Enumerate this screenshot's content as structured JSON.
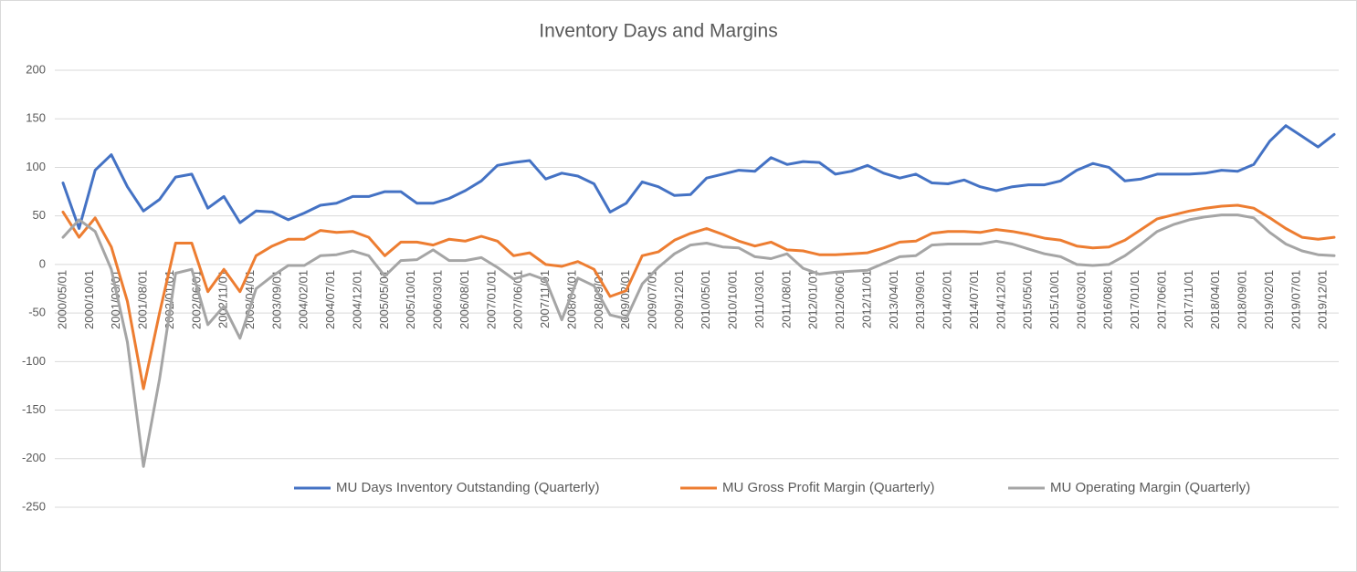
{
  "chart_data": {
    "type": "line",
    "title": "Inventory Days and Margins",
    "x": [
      "2000/05/01",
      "2000/08/01",
      "2000/11/01",
      "2001/02/01",
      "2001/05/01",
      "2001/08/01",
      "2001/11/01",
      "2002/02/01",
      "2002/05/01",
      "2002/08/01",
      "2002/11/01",
      "2003/02/01",
      "2003/05/01",
      "2003/08/01",
      "2003/11/01",
      "2004/02/01",
      "2004/05/01",
      "2004/08/01",
      "2004/11/01",
      "2005/02/01",
      "2005/05/01",
      "2005/08/01",
      "2005/11/01",
      "2006/02/01",
      "2006/05/01",
      "2006/08/01",
      "2006/11/01",
      "2007/02/01",
      "2007/05/01",
      "2007/08/01",
      "2007/11/01",
      "2008/02/01",
      "2008/05/01",
      "2008/08/01",
      "2008/11/01",
      "2009/02/01",
      "2009/05/01",
      "2009/08/01",
      "2009/11/01",
      "2010/02/01",
      "2010/05/01",
      "2010/08/01",
      "2010/11/01",
      "2011/02/01",
      "2011/05/01",
      "2011/08/01",
      "2011/11/01",
      "2012/02/01",
      "2012/05/01",
      "2012/08/01",
      "2012/11/01",
      "2013/02/01",
      "2013/05/01",
      "2013/08/01",
      "2013/11/01",
      "2014/02/01",
      "2014/05/01",
      "2014/08/01",
      "2014/11/01",
      "2015/02/01",
      "2015/05/01",
      "2015/08/01",
      "2015/11/01",
      "2016/02/01",
      "2016/05/01",
      "2016/08/01",
      "2016/11/01",
      "2017/02/01",
      "2017/05/01",
      "2017/08/01",
      "2017/11/01",
      "2018/02/01",
      "2018/05/01",
      "2018/08/01",
      "2018/11/01",
      "2019/02/01",
      "2019/05/01",
      "2019/08/01",
      "2019/11/01",
      "2020/02/01"
    ],
    "xlim": [
      "2000/05/01",
      "2020/02/01"
    ],
    "xticks": [
      "2000/05/01",
      "2000/10/01",
      "2001/03/01",
      "2001/08/01",
      "2002/01/01",
      "2002/06/01",
      "2002/11/01",
      "2003/04/01",
      "2003/09/01",
      "2004/02/01",
      "2004/07/01",
      "2004/12/01",
      "2005/05/01",
      "2005/10/01",
      "2006/03/01",
      "2006/08/01",
      "2007/01/01",
      "2007/06/01",
      "2007/11/01",
      "2008/04/01",
      "2008/09/01",
      "2009/02/01",
      "2009/07/01",
      "2009/12/01",
      "2010/05/01",
      "2010/10/01",
      "2011/03/01",
      "2011/08/01",
      "2012/01/01",
      "2012/06/01",
      "2012/11/01",
      "2013/04/01",
      "2013/09/01",
      "2014/02/01",
      "2014/07/01",
      "2014/12/01",
      "2015/05/01",
      "2015/10/01",
      "2016/03/01",
      "2016/08/01",
      "2017/01/01",
      "2017/06/01",
      "2017/11/01",
      "2018/04/01",
      "2018/09/01",
      "2019/02/01",
      "2019/07/01",
      "2019/12/01"
    ],
    "ylim": [
      -250,
      200
    ],
    "yticks": [
      -250,
      -200,
      -150,
      -100,
      -50,
      0,
      50,
      100,
      150,
      200
    ],
    "grid": true,
    "legend": "bottom",
    "series": [
      {
        "name": "MU Days Inventory Outstanding (Quarterly)",
        "color": "#4472c4",
        "values": [
          84,
          37,
          97,
          113,
          80,
          55,
          67,
          90,
          93,
          58,
          70,
          43,
          55,
          54,
          46,
          53,
          61,
          63,
          70,
          70,
          75,
          75,
          63,
          63,
          68,
          76,
          86,
          102,
          105,
          107,
          88,
          94,
          91,
          83,
          54,
          63,
          85,
          80,
          71,
          72,
          89,
          93,
          97,
          96,
          110,
          103,
          106,
          105,
          93,
          96,
          102,
          94,
          89,
          93,
          84,
          83,
          87,
          80,
          76,
          80,
          82,
          82,
          86,
          97,
          104,
          100,
          86,
          88,
          93,
          93,
          93,
          94,
          97,
          96,
          103,
          127,
          143,
          132,
          121,
          134
        ]
      },
      {
        "name": "MU Gross Profit Margin (Quarterly)",
        "color": "#ed7d31",
        "values": [
          54,
          28,
          48,
          18,
          -38,
          -128,
          -50,
          22,
          22,
          -28,
          -5,
          -28,
          9,
          19,
          26,
          26,
          35,
          33,
          34,
          28,
          9,
          23,
          23,
          20,
          26,
          24,
          29,
          24,
          9,
          12,
          0,
          -2,
          3,
          -5,
          -33,
          -27,
          9,
          13,
          25,
          32,
          37,
          31,
          24,
          19,
          23,
          15,
          14,
          10,
          10,
          11,
          12,
          17,
          23,
          24,
          32,
          34,
          34,
          33,
          36,
          34,
          31,
          27,
          25,
          19,
          17,
          18,
          25,
          36,
          47,
          51,
          55,
          58,
          60,
          61,
          58,
          48,
          37,
          28,
          26,
          28
        ]
      },
      {
        "name": "MU Operating Margin (Quarterly)",
        "color": "#a5a5a5",
        "values": [
          28,
          46,
          34,
          -5,
          -80,
          -208,
          -118,
          -9,
          -5,
          -62,
          -43,
          -76,
          -25,
          -12,
          -1,
          -1,
          9,
          10,
          14,
          9,
          -12,
          4,
          5,
          15,
          4,
          4,
          7,
          -3,
          -15,
          -10,
          -16,
          -57,
          -14,
          -22,
          -52,
          -56,
          -20,
          -3,
          11,
          20,
          22,
          18,
          17,
          8,
          6,
          11,
          -4,
          -10,
          -8,
          -7,
          -6,
          1,
          8,
          9,
          20,
          21,
          21,
          21,
          24,
          21,
          16,
          11,
          8,
          0,
          -1,
          0,
          9,
          21,
          34,
          41,
          46,
          49,
          51,
          51,
          48,
          33,
          21,
          14,
          10,
          9
        ]
      }
    ]
  }
}
